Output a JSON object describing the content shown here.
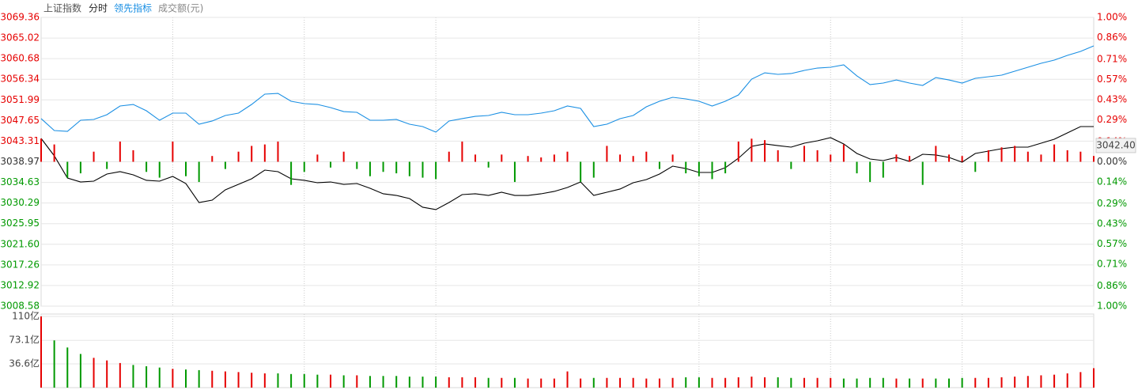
{
  "header": {
    "title": "上证指数"
  },
  "chart_data": [
    {
      "type": "line",
      "xlim": [
        0,
        240
      ],
      "x": [
        0,
        3,
        6,
        9,
        12,
        15,
        18,
        21,
        24,
        27,
        30,
        33,
        36,
        39,
        42,
        45,
        48,
        51,
        54,
        57,
        60,
        63,
        66,
        69,
        72,
        75,
        78,
        81,
        84,
        87,
        90,
        93,
        96,
        99,
        102,
        105,
        108,
        111,
        114,
        117,
        120,
        123,
        126,
        129,
        132,
        135,
        138,
        141,
        144,
        147,
        150,
        153,
        156,
        159,
        162,
        165,
        168,
        171,
        174,
        177,
        180,
        183,
        186,
        189,
        192,
        195,
        198,
        201,
        204,
        207,
        210,
        213,
        216,
        219,
        222,
        225,
        228,
        231,
        234,
        237,
        240
      ],
      "ylim": [
        3008.58,
        3069.36
      ],
      "yticks": [
        3069.36,
        3065.02,
        3060.68,
        3056.34,
        3051.99,
        3047.65,
        3043.31,
        3038.97,
        3034.63,
        3030.29,
        3025.95,
        {
          "value": 3021.6,
          "label": "3021.60"
        },
        3017.26,
        3012.92,
        3008.58
      ],
      "y2lim": [
        -1,
        1
      ],
      "y2ticks": [
        {
          "value": 1,
          "label": "1.00%"
        },
        {
          "value": 0.86,
          "label": "0.86%"
        },
        {
          "value": 0.71,
          "label": "0.71%"
        },
        {
          "value": 0.57,
          "label": "0.57%"
        },
        {
          "value": 0.43,
          "label": "0.43%"
        },
        {
          "value": 0.29,
          "label": "0.29%"
        },
        {
          "value": 0.14,
          "label": "0.14%"
        },
        {
          "value": 0,
          "label": "0.00%"
        },
        {
          "value": -0.14,
          "label": "0.14%"
        },
        {
          "value": -0.29,
          "label": "0.29%"
        },
        {
          "value": -0.43,
          "label": "0.43%"
        },
        {
          "value": -0.57,
          "label": "0.57%"
        },
        {
          "value": -0.71,
          "label": "0.71%"
        },
        {
          "value": -0.86,
          "label": "0.86%"
        },
        {
          "value": -1,
          "label": "1.00%"
        }
      ],
      "up_color": "#e60000",
      "down_color": "#009900",
      "flat_color": "#333333",
      "grid": true,
      "price_tag": {
        "value": 3042.4,
        "label": "3042.40"
      },
      "series": [
        {
          "name": "分时",
          "color": "#000000",
          "values": [
            3043.88,
            3040.22,
            3035.56,
            3034.72,
            3034.89,
            3036.39,
            3036.89,
            3036.22,
            3035.06,
            3034.89,
            3035.89,
            3034.39,
            3030.39,
            3030.89,
            3033.06,
            3034.22,
            3035.39,
            3037.22,
            3036.89,
            3035.39,
            3035.06,
            3034.56,
            3034.72,
            3034.22,
            3034.39,
            3033.39,
            3032.23,
            3031.89,
            3031.23,
            3029.4,
            3028.9,
            3030.39,
            3032.06,
            3032.23,
            3031.89,
            3032.56,
            3031.89,
            3031.89,
            3032.23,
            3032.73,
            3033.56,
            3034.72,
            3031.89,
            3032.56,
            3033.23,
            3034.56,
            3035.22,
            3036.39,
            3038.05,
            3037.55,
            3036.72,
            3036.72,
            3037.72,
            3039.72,
            3042.22,
            3042.72,
            3042.38,
            3042.05,
            3042.88,
            3043.38,
            3044.05,
            3042.72,
            3040.72,
            3039.55,
            3039.22,
            3039.89,
            3039.05,
            3040.55,
            3040.39,
            3039.89,
            3038.89,
            3040.72,
            3041.22,
            3041.72,
            3042.05,
            3042.05,
            3042.88,
            3043.72,
            3045.05,
            3046.38,
            3046.38
          ]
        },
        {
          "name": "领先指标",
          "color": "#1a8fe3",
          "values": [
            3048.05,
            3045.55,
            3045.38,
            3047.71,
            3047.88,
            3048.88,
            3050.71,
            3051.04,
            3049.71,
            3047.71,
            3049.21,
            3049.21,
            3046.88,
            3047.55,
            3048.71,
            3049.21,
            3051.04,
            3053.21,
            3053.37,
            3051.71,
            3051.21,
            3051.04,
            3050.38,
            3049.54,
            3049.38,
            3047.71,
            3047.71,
            3047.88,
            3046.88,
            3046.38,
            3045.21,
            3047.55,
            3048.05,
            3048.54,
            3048.71,
            3049.38,
            3048.88,
            3048.88,
            3049.21,
            3049.71,
            3050.71,
            3050.21,
            3046.38,
            3046.88,
            3048.05,
            3048.71,
            3050.54,
            3051.71,
            3052.54,
            3052.21,
            3051.71,
            3050.71,
            3051.71,
            3053.04,
            3056.37,
            3057.7,
            3057.37,
            3057.54,
            3058.2,
            3058.7,
            3058.87,
            3059.37,
            3057.04,
            3055.21,
            3055.54,
            3056.2,
            3055.54,
            3055.04,
            3056.7,
            3056.2,
            3055.54,
            3056.54,
            3056.87,
            3057.2,
            3058.04,
            3058.87,
            3059.7,
            3060.37,
            3061.37,
            3062.2,
            3063.37
          ]
        },
        {
          "kind": "bar",
          "axis": "y2",
          "values": [
            0.16,
            0.12,
            -0.11,
            -0.08,
            0.07,
            -0.05,
            0.14,
            0.08,
            -0.07,
            -0.11,
            0.14,
            -0.1,
            -0.14,
            0.04,
            -0.05,
            0.07,
            0.11,
            0.12,
            0.14,
            -0.16,
            -0.07,
            0.05,
            -0.04,
            0.07,
            -0.05,
            -0.1,
            -0.07,
            -0.08,
            -0.1,
            -0.11,
            -0.12,
            0.07,
            0.14,
            0.05,
            -0.04,
            0.05,
            -0.14,
            0.04,
            0.03,
            0.05,
            0.07,
            -0.14,
            -0.11,
            0.11,
            0.05,
            0.04,
            0.07,
            -0.05,
            0.05,
            -0.08,
            -0.1,
            -0.12,
            -0.08,
            0.14,
            0.16,
            0.15,
            0.08,
            -0.05,
            0.11,
            0.08,
            0.05,
            0.12,
            -0.08,
            -0.14,
            -0.11,
            0.05,
            0.04,
            -0.16,
            0.11,
            0.05,
            0.04,
            -0.07,
            0.08,
            0.1,
            0.11,
            0.07,
            0.05,
            0.12,
            0.08,
            0.07,
            0.04
          ]
        }
      ]
    },
    {
      "type": "bar",
      "title": "成交额(元)",
      "xlim": [
        0,
        240
      ],
      "x": [
        0,
        3,
        6,
        9,
        12,
        15,
        18,
        21,
        24,
        27,
        30,
        33,
        36,
        39,
        42,
        45,
        48,
        51,
        54,
        57,
        60,
        63,
        66,
        69,
        72,
        75,
        78,
        81,
        84,
        87,
        90,
        93,
        96,
        99,
        102,
        105,
        108,
        111,
        114,
        117,
        120,
        123,
        126,
        129,
        132,
        135,
        138,
        141,
        144,
        147,
        150,
        153,
        156,
        159,
        162,
        165,
        168,
        171,
        174,
        177,
        180,
        183,
        186,
        189,
        192,
        195,
        198,
        201,
        204,
        207,
        210,
        213,
        216,
        219,
        222,
        225,
        228,
        231,
        234,
        237,
        240
      ],
      "ylim": [
        0,
        110
      ],
      "yticks": [
        {
          "value": 110,
          "label": "110亿"
        },
        {
          "value": 73.1,
          "label": "73.1亿"
        },
        {
          "value": 36.6,
          "label": "36.6亿"
        }
      ],
      "values": [
        110,
        73,
        62,
        52,
        46,
        42,
        38,
        35,
        33,
        31,
        29,
        28,
        27,
        26,
        25,
        24,
        23,
        22,
        22,
        21,
        21,
        20,
        20,
        19,
        19,
        18,
        18,
        18,
        17,
        17,
        17,
        16,
        16,
        16,
        15,
        15,
        15,
        14,
        14,
        14,
        25,
        14,
        15,
        15,
        15,
        15,
        14,
        14,
        15,
        16,
        16,
        15,
        15,
        16,
        17,
        16,
        16,
        15,
        15,
        15,
        15,
        14,
        14,
        15,
        15,
        14,
        14,
        14,
        14,
        14,
        15,
        15,
        15,
        16,
        17,
        18,
        19,
        20,
        22,
        24,
        30
      ]
    }
  ]
}
